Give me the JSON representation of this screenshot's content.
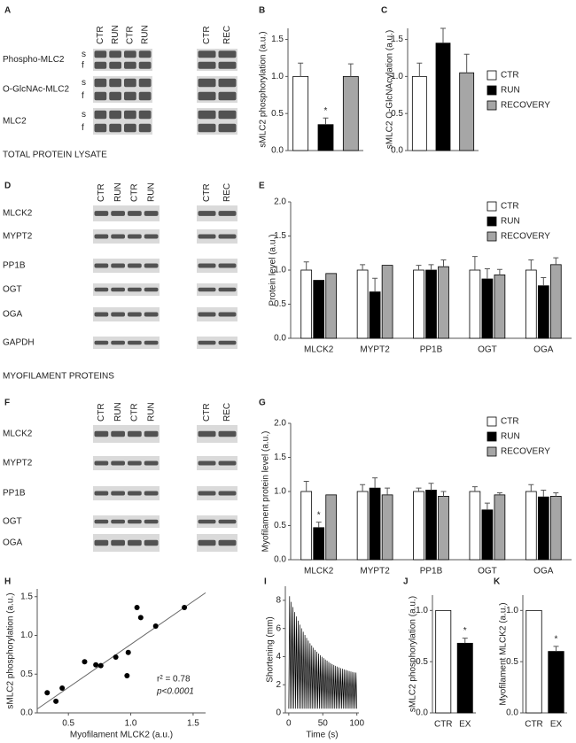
{
  "section_titles": [
    "TOTAL PROTEIN LYSATE",
    "MYOFILAMENT PROTEINS"
  ],
  "blots": [
    {
      "panel": "A",
      "lanes": [
        [
          "CTR",
          "RUN",
          "CTR",
          "RUN"
        ],
        [
          "CTR",
          "REC"
        ]
      ],
      "rows": [
        {
          "name": "Phospho-MLC2",
          "bands": [
            "s",
            "f"
          ]
        },
        {
          "name": "O-GlcNAc-MLC2",
          "bands": [
            "s",
            "f"
          ]
        },
        {
          "name": "MLC2",
          "bands": [
            "s",
            "f"
          ]
        }
      ]
    },
    {
      "panel": "D",
      "lanes": [
        [
          "CTR",
          "RUN",
          "CTR",
          "RUN"
        ],
        [
          "CTR",
          "REC"
        ]
      ],
      "rows": [
        {
          "name": "MLCK2"
        },
        {
          "name": "MYPT2"
        },
        {
          "name": "PP1B"
        },
        {
          "name": "OGT"
        },
        {
          "name": "OGA"
        },
        {
          "name": "GAPDH"
        }
      ]
    },
    {
      "panel": "F",
      "lanes": [
        [
          "CTR",
          "RUN",
          "CTR",
          "RUN"
        ],
        [
          "CTR",
          "REC"
        ]
      ],
      "rows": [
        {
          "name": "MLCK2"
        },
        {
          "name": "MYPT2"
        },
        {
          "name": "PP1B"
        },
        {
          "name": "OGT"
        },
        {
          "name": "OGA"
        }
      ]
    }
  ],
  "chart_data": [
    {
      "panel": "B",
      "type": "bar",
      "ylabel": "sMLC2 phosphorylation (a.u.)",
      "ylim": [
        0,
        1.65
      ],
      "yticks": [
        {
          "value": 0,
          "label": "0.0"
        },
        0.5,
        {
          "value": 1,
          "label": "1.0"
        },
        1.5
      ],
      "series": [
        {
          "name": "CTR",
          "color": "#ffffff",
          "values": [
            1.0
          ],
          "errors": [
            0.18
          ]
        },
        {
          "name": "RUN",
          "color": "#000000",
          "values": [
            0.35
          ],
          "errors": [
            0.09
          ],
          "significance": [
            "*"
          ]
        },
        {
          "name": "RECOVERY",
          "color": "#a6a6a6",
          "values": [
            1.0
          ],
          "errors": [
            0.17
          ]
        }
      ]
    },
    {
      "panel": "C",
      "type": "bar",
      "ylabel": "sMLC2 O-GlcNAcylation (a.u.)",
      "ylim": [
        0,
        1.65
      ],
      "yticks": [
        {
          "value": 0,
          "label": "0.0"
        },
        0.5,
        {
          "value": 1,
          "label": "1.0"
        },
        1.5
      ],
      "series": [
        {
          "color": "#ffffff",
          "values": [
            1.0
          ],
          "errors": [
            0.18
          ]
        },
        {
          "color": "#000000",
          "values": [
            1.45
          ],
          "errors": [
            0.2
          ]
        },
        {
          "color": "#a6a6a6",
          "values": [
            1.05
          ],
          "errors": [
            0.25
          ]
        }
      ]
    },
    {
      "panel": "E",
      "type": "bar",
      "ylabel": "Protein level (a.u.)",
      "ylim": [
        0,
        2
      ],
      "yticks": [
        {
          "value": 0,
          "label": "0.0"
        },
        0.5,
        {
          "value": 1,
          "label": "1.0"
        },
        1.5,
        {
          "value": 2,
          "label": "2.0"
        }
      ],
      "categories": [
        "MLCK2",
        "MYPT2",
        "PP1B",
        "OGT",
        "OGA"
      ],
      "series": [
        {
          "name": "CTR",
          "color": "#ffffff",
          "values": [
            1.0,
            1.0,
            1.0,
            1.0,
            1.0
          ],
          "errors": [
            0.12,
            0.08,
            0.07,
            0.2,
            0.15
          ]
        },
        {
          "name": "RUN",
          "color": "#000000",
          "values": [
            0.85,
            0.68,
            1.0,
            0.87,
            0.77
          ],
          "errors": [
            null,
            0.2,
            0.08,
            0.15,
            0.12
          ]
        },
        {
          "name": "RECOVERY",
          "color": "#a6a6a6",
          "values": [
            0.95,
            1.07,
            1.05,
            0.93,
            1.08
          ],
          "errors": [
            null,
            null,
            0.1,
            0.08,
            0.1
          ]
        }
      ]
    },
    {
      "panel": "G",
      "type": "bar",
      "ylabel": "Myofilament protein level (a.u.)",
      "ylim": [
        0,
        2
      ],
      "yticks": [
        {
          "value": 0,
          "label": "0.0"
        },
        0.5,
        {
          "value": 1,
          "label": "1.0"
        },
        1.5,
        {
          "value": 2,
          "label": "2.0"
        }
      ],
      "categories": [
        "MLCK2",
        "MYPT2",
        "PP1B",
        "OGT",
        "OGA"
      ],
      "series": [
        {
          "name": "CTR",
          "color": "#ffffff",
          "values": [
            1.0,
            1.0,
            1.0,
            1.0,
            1.0
          ],
          "errors": [
            0.15,
            0.1,
            0.05,
            0.07,
            0.1
          ]
        },
        {
          "name": "RUN",
          "color": "#000000",
          "values": [
            0.47,
            1.05,
            1.02,
            0.73,
            0.92
          ],
          "errors": [
            0.08,
            0.15,
            0.1,
            0.1,
            0.1
          ],
          "significance": [
            "*",
            null,
            null,
            null,
            null
          ]
        },
        {
          "name": "RECOVERY",
          "color": "#a6a6a6",
          "values": [
            0.95,
            0.95,
            0.93,
            0.95,
            0.93
          ],
          "errors": [
            null,
            0.1,
            0.07,
            0.03,
            0.05
          ]
        }
      ]
    },
    {
      "panel": "H",
      "type": "scatter",
      "xlabel": "Myofilament MLCK2 (a.u.)",
      "ylabel": "sMLC2 phosphorylation (a.u.)",
      "xlim": [
        0.25,
        1.6
      ],
      "xticks": [
        0.5,
        {
          "value": 1,
          "label": "1.0"
        },
        1.5
      ],
      "ylim": [
        0,
        1.6
      ],
      "yticks": [
        {
          "value": 0,
          "label": "0.0"
        },
        0.5,
        {
          "value": 1,
          "label": "1.0"
        },
        1.5
      ],
      "x": [
        0.33,
        0.4,
        0.45,
        0.63,
        0.72,
        0.76,
        0.88,
        0.97,
        0.98,
        1.05,
        1.08,
        1.2,
        1.43
      ],
      "y": [
        0.26,
        0.15,
        0.32,
        0.66,
        0.62,
        0.61,
        0.72,
        0.48,
        0.78,
        1.36,
        1.23,
        1.12,
        1.36
      ],
      "fit": {
        "x": [
          0.25,
          1.6
        ],
        "y": [
          0.05,
          1.55
        ]
      },
      "annotations": [
        "r² = 0.78",
        "p<0.0001"
      ]
    },
    {
      "panel": "I",
      "type": "line",
      "xlabel": "Time (s)",
      "ylabel": "Shortening (mm)",
      "xlim": [
        -5,
        103
      ],
      "xticks": [
        0,
        50,
        100
      ],
      "ylim": [
        0,
        9
      ],
      "yticks": [
        0,
        2,
        4,
        6,
        8
      ],
      "color": "#000000",
      "x": [
        0,
        1.25,
        2.5,
        3.75,
        5,
        6.25,
        7.5,
        8.75,
        10,
        11.25,
        12.5,
        13.75,
        15,
        16.25,
        17.5,
        18.75,
        20,
        21.25,
        22.5,
        23.75,
        25,
        26.25,
        27.5,
        28.75,
        30,
        31.25,
        32.5,
        33.75,
        35,
        36.25,
        37.5,
        38.75,
        40,
        41.25,
        42.5,
        43.75,
        45,
        46.25,
        47.5,
        48.75,
        50,
        51.25,
        52.5,
        53.75,
        55,
        56.25,
        57.5,
        58.75,
        60,
        61.25,
        62.5,
        63.75,
        65,
        66.25,
        67.5,
        68.75,
        70,
        71.25,
        72.5,
        73.75,
        75,
        76.25,
        77.5,
        78.75,
        80,
        81.25,
        82.5,
        83.75,
        85,
        86.25,
        87.5,
        88.75,
        90,
        91.25,
        92.5,
        93.75,
        95,
        96.25,
        97.5,
        98.75,
        100
      ],
      "y": [
        0.3,
        8.29,
        0.3,
        7.89,
        0.3,
        7.52,
        0.3,
        7.17,
        0.3,
        6.85,
        0.3,
        6.55,
        0.3,
        6.27,
        0.3,
        6.01,
        0.3,
        5.77,
        0.3,
        5.54,
        0.3,
        5.33,
        0.3,
        5.14,
        0.3,
        4.95,
        0.3,
        4.79,
        0.3,
        4.63,
        0.3,
        4.48,
        0.3,
        4.35,
        0.3,
        4.22,
        0.3,
        4.1,
        0.3,
        3.99,
        0.3,
        3.89,
        0.3,
        3.79,
        0.3,
        3.71,
        0.3,
        3.62,
        0.3,
        3.54,
        0.3,
        3.47,
        0.3,
        3.41,
        0.3,
        3.34,
        0.3,
        3.29,
        0.3,
        3.23,
        0.3,
        3.18,
        0.3,
        3.14,
        0.3,
        3.09,
        0.3,
        3.05,
        0.3,
        3.01,
        0.3,
        2.97,
        0.3,
        2.94,
        0.3,
        2.91,
        0.3,
        2.88,
        0.3,
        2.86,
        0.3
      ]
    },
    {
      "panel": "J",
      "type": "bar",
      "ylabel": "sMLC2 phosphorylation (a.u.)",
      "ylim": [
        0,
        1.15
      ],
      "yticks": [
        {
          "value": 0,
          "label": "0.0"
        },
        0.5,
        {
          "value": 1,
          "label": "1.0"
        }
      ],
      "categories": [
        "CTR",
        "EX"
      ],
      "values": [
        1.0,
        0.68
      ],
      "errors": [
        null,
        0.05
      ],
      "colors": [
        "#ffffff",
        "#000000"
      ],
      "significance": [
        null,
        "*"
      ]
    },
    {
      "panel": "K",
      "type": "bar",
      "ylabel": "Myofilament MLCK2 (a.u.)",
      "ylim": [
        0,
        1.15
      ],
      "yticks": [
        {
          "value": 0,
          "label": "0.0"
        },
        0.5,
        {
          "value": 1,
          "label": "1.0"
        }
      ],
      "categories": [
        "CTR",
        "EX"
      ],
      "values": [
        1.0,
        0.6
      ],
      "errors": [
        null,
        0.05
      ],
      "colors": [
        "#ffffff",
        "#000000"
      ],
      "significance": [
        null,
        "*"
      ]
    }
  ]
}
